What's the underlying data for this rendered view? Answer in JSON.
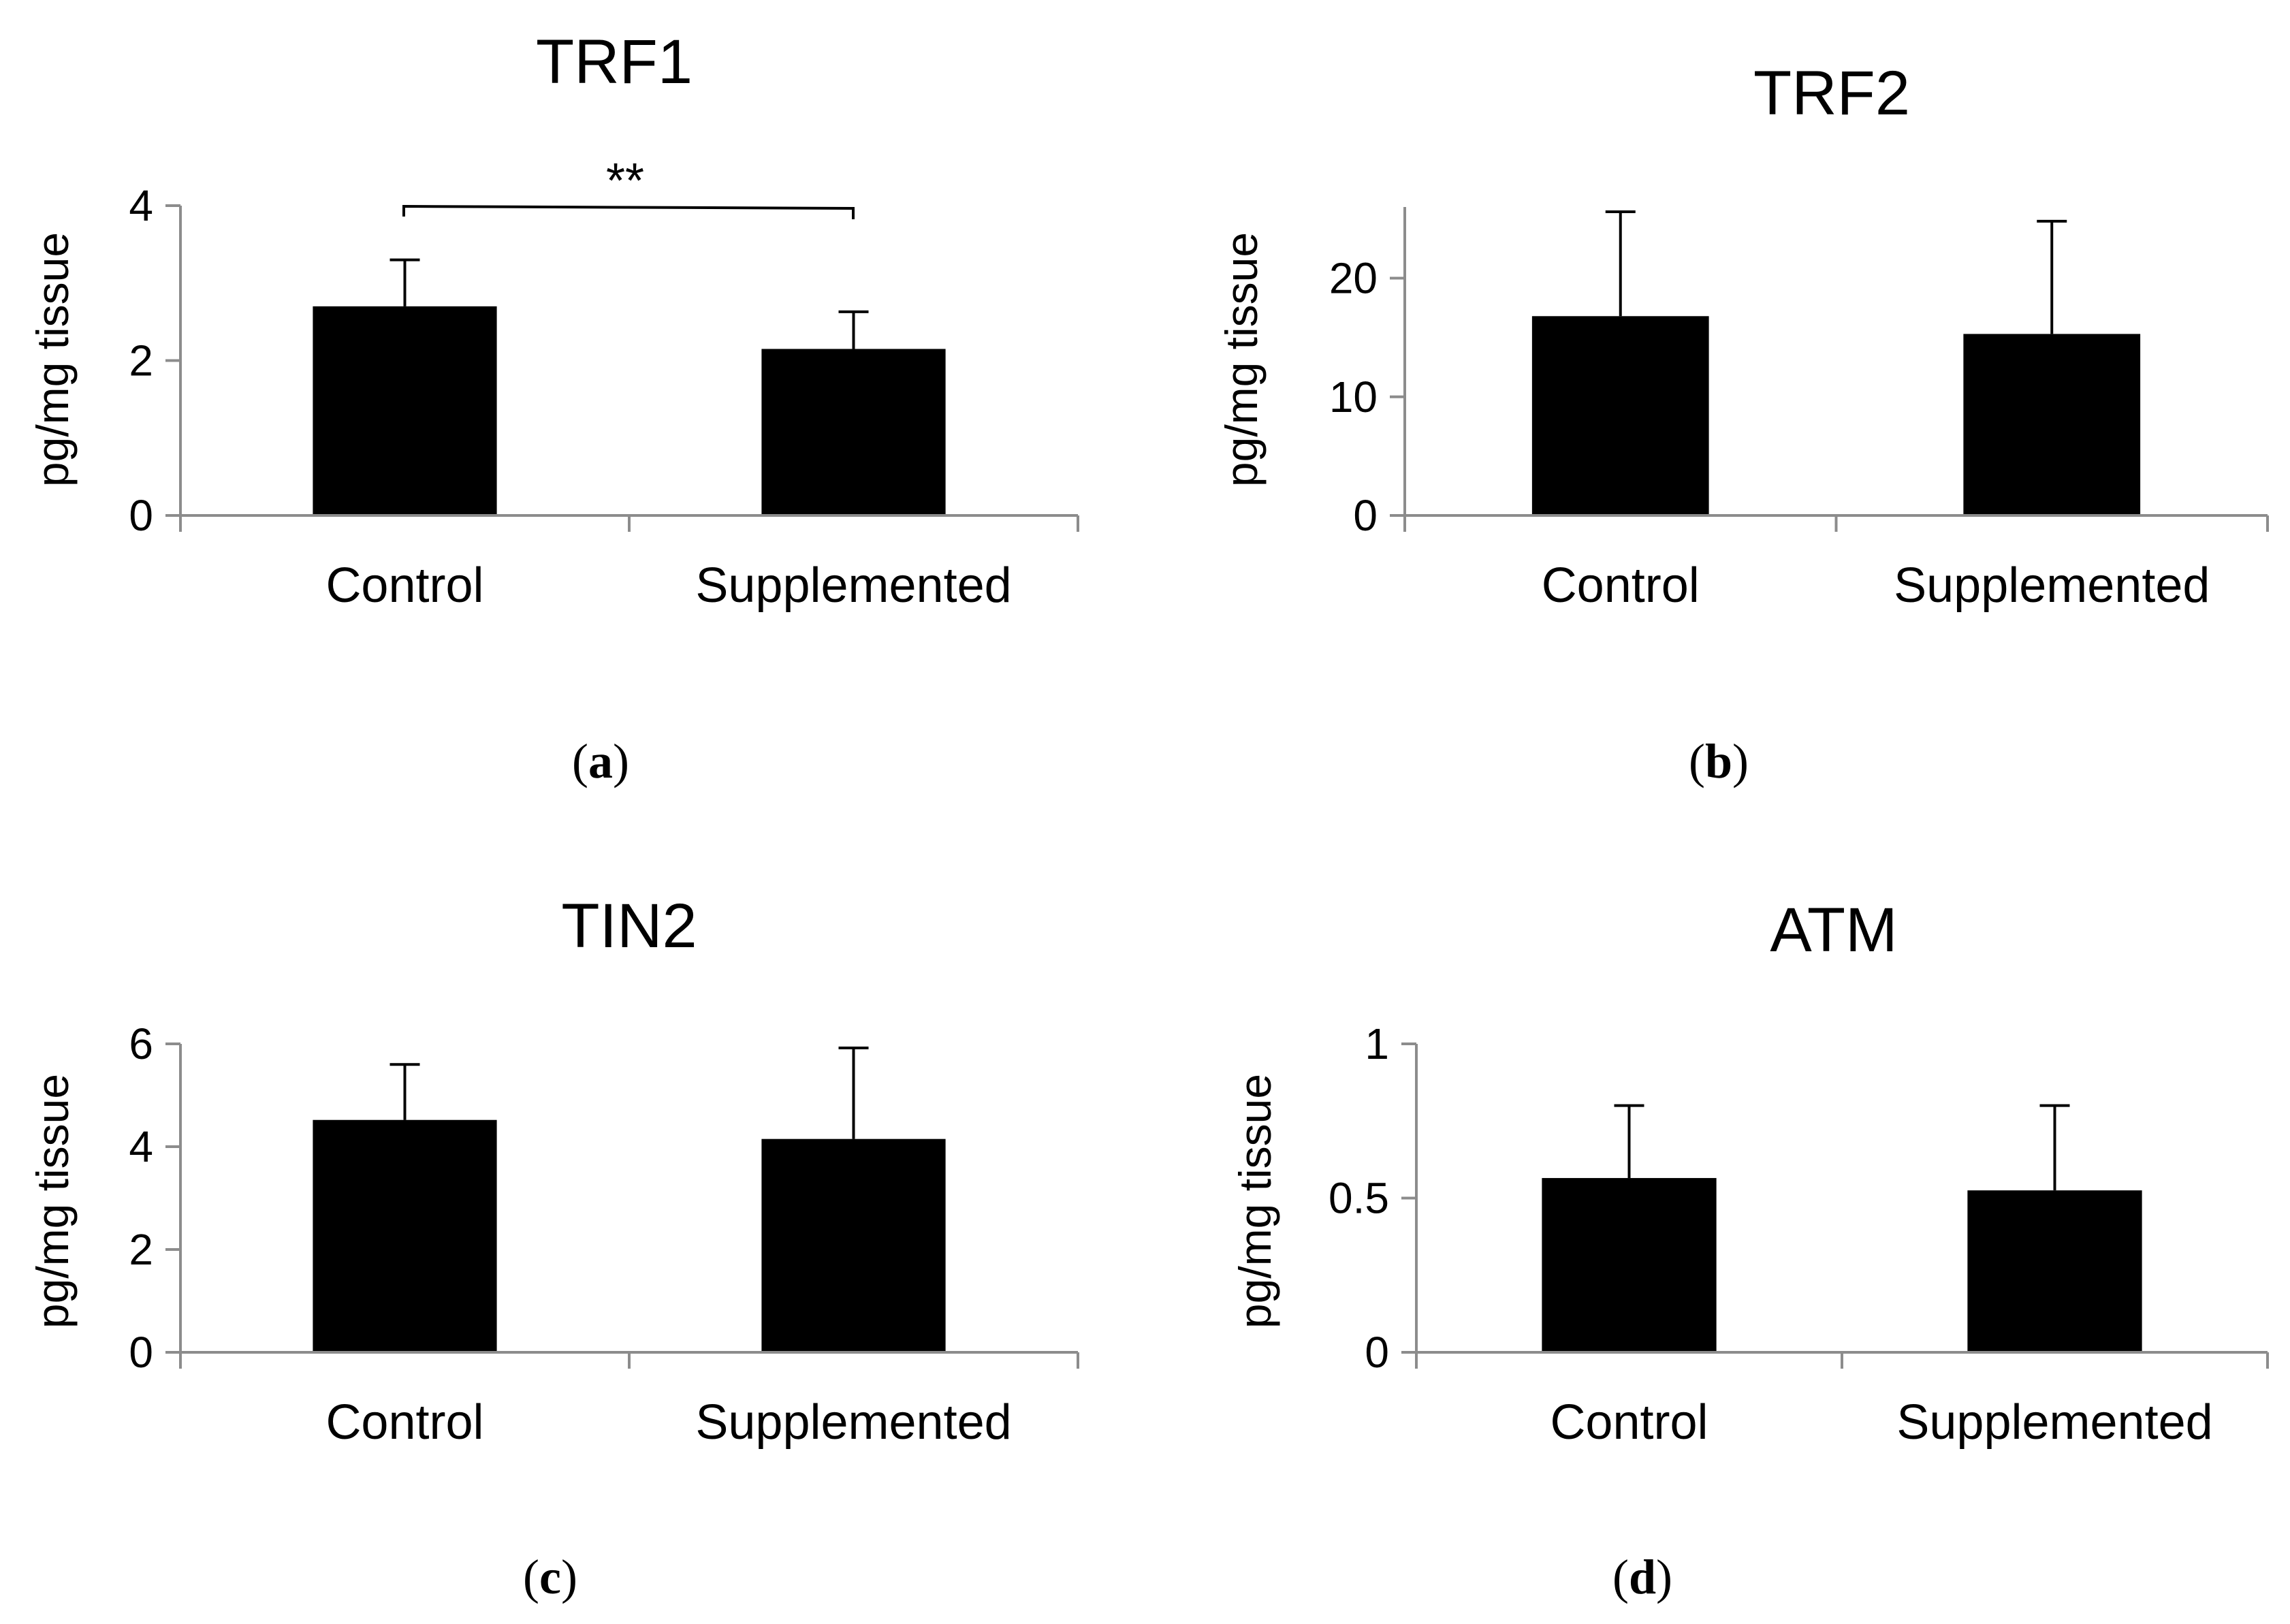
{
  "chart_data": [
    {
      "type": "bar",
      "panel": "a",
      "title": "TRF1",
      "ylabel": "pg/mg tissue",
      "xlabel": "",
      "categories": [
        "Control",
        "Supplemented"
      ],
      "values": [
        2.7,
        2.15
      ],
      "error": [
        0.6,
        0.48
      ],
      "ylim": [
        0,
        4
      ],
      "yticks": [
        "0",
        "2",
        "4"
      ],
      "significance": "**"
    },
    {
      "type": "bar",
      "panel": "b",
      "title": "TRF2",
      "ylabel": "pg/mg tissue",
      "xlabel": "",
      "categories": [
        "Control",
        "Supplemented"
      ],
      "values": [
        16.8,
        15.3
      ],
      "error": [
        8.8,
        9.5
      ],
      "ylim": [
        0,
        26
      ],
      "yticks": [
        "0",
        "10",
        "20"
      ]
    },
    {
      "type": "bar",
      "panel": "c",
      "title": "TIN2",
      "ylabel": "pg/mg tissue",
      "xlabel": "",
      "categories": [
        "Control",
        "Supplemented"
      ],
      "values": [
        4.52,
        4.15
      ],
      "error": [
        1.08,
        1.77
      ],
      "ylim": [
        0,
        6
      ],
      "yticks": [
        "0",
        "2",
        "4",
        "6"
      ]
    },
    {
      "type": "bar",
      "panel": "d",
      "title": "ATM",
      "ylabel": "pg/mg tissue",
      "xlabel": "",
      "categories": [
        "Control",
        "Supplemented"
      ],
      "values": [
        0.565,
        0.525
      ],
      "error": [
        0.235,
        0.275
      ],
      "ylim": [
        0,
        1
      ],
      "yticks": [
        "0",
        "0.5",
        "1"
      ]
    }
  ],
  "colors": {
    "bar": "#000000",
    "axis": "#8c8c8c",
    "errorbar": "#000000"
  }
}
